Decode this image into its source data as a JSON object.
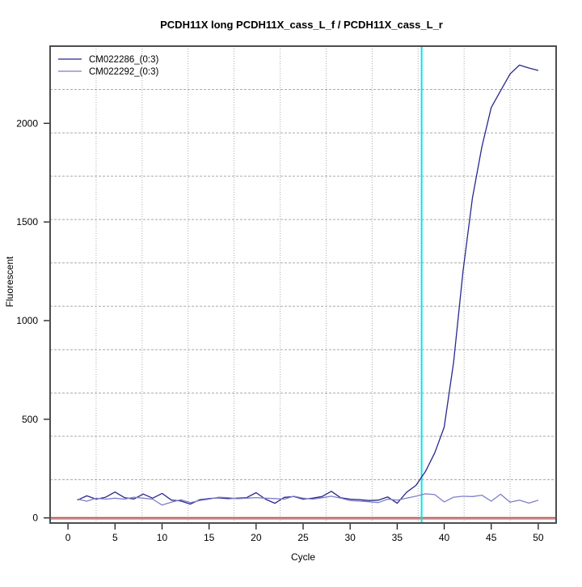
{
  "chart_data": {
    "type": "line",
    "title": "PCDH11X long PCDH11X_cass_L_f / PCDH11X_cass_L_r",
    "xlabel": "Cycle",
    "ylabel": "Fluorescent",
    "xlim": [
      -1.9,
      51.9
    ],
    "ylim": [
      -26,
      2391
    ],
    "xticks": [
      0,
      5,
      10,
      15,
      20,
      25,
      30,
      35,
      40,
      45,
      50
    ],
    "yticks": [
      0,
      500,
      1000,
      1500,
      2000
    ],
    "grid": {
      "style": "dotted",
      "color": "#ababab",
      "h_divisions": 11,
      "v_divisions": 11
    },
    "legend": {
      "position": "top-left"
    },
    "x": [
      1,
      2,
      3,
      4,
      5,
      6,
      7,
      8,
      9,
      10,
      11,
      12,
      13,
      14,
      15,
      16,
      17,
      18,
      19,
      20,
      21,
      22,
      23,
      24,
      25,
      26,
      27,
      28,
      29,
      30,
      31,
      32,
      33,
      34,
      35,
      36,
      37,
      38,
      39,
      40,
      41,
      42,
      43,
      44,
      45,
      46,
      47,
      48,
      49,
      50
    ],
    "series": [
      {
        "name": "CM022286_(0:3)",
        "color": "#28288e",
        "values": [
          90,
          112,
          95,
          105,
          131,
          103,
          96,
          121,
          100,
          124,
          90,
          86,
          70,
          92,
          98,
          102,
          98,
          100,
          103,
          128,
          95,
          74,
          104,
          108,
          95,
          100,
          108,
          135,
          102,
          95,
          92,
          88,
          90,
          106,
          74,
          130,
          165,
          235,
          330,
          460,
          790,
          1250,
          1620,
          1880,
          2080,
          2165,
          2250,
          2295,
          2280,
          2268
        ]
      },
      {
        "name": "CM022292_(0:3)",
        "color": "#7e7ec8",
        "values": [
          95,
          85,
          100,
          95,
          100,
          95,
          105,
          100,
          95,
          65,
          80,
          92,
          78,
          88,
          95,
          105,
          103,
          97,
          100,
          103,
          100,
          98,
          95,
          110,
          100,
          95,
          102,
          110,
          100,
          88,
          85,
          82,
          78,
          95,
          90,
          100,
          110,
          122,
          118,
          81,
          105,
          110,
          108,
          115,
          85,
          120,
          80,
          90,
          75,
          90
        ]
      }
    ],
    "threshold_line": {
      "x": 37.6,
      "color": "#00e6e6"
    },
    "baseline": {
      "y": 0,
      "color": "#b85252",
      "underline_color": "#dda6a6"
    }
  }
}
